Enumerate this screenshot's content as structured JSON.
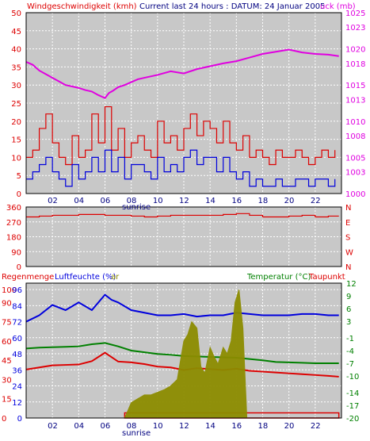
{
  "colors": {
    "red": "#dd0000",
    "blue": "#0000dd",
    "magenta": "#e000e0",
    "green": "#008000",
    "olive": "#8c8c00",
    "text_dark": "#000080",
    "grid": "#ffffff",
    "plot_bg": "#c8c8c8"
  },
  "header": {
    "left_label": "Windgeschwindigkeit (kmh)",
    "center_label": "Current last 24 hours : DATUM: 24 Januar 2005",
    "right_label": "uck (mb)"
  },
  "hours": [
    "02",
    "04",
    "06",
    "08",
    "10",
    "12",
    "14",
    "16",
    "18",
    "20",
    "22"
  ],
  "sunrise_label": "sunrise",
  "chart_data": [
    {
      "type": "line",
      "name": "wind-speed-and-pressure",
      "title": "Windgeschwindigkeit (kmh)",
      "ylabel_left": "Windgeschwindigkeit (kmh)",
      "ylabel_right": "uck (mb)",
      "x_range": [
        0,
        24
      ],
      "ylim_left": [
        0,
        50
      ],
      "ylim_right": [
        1000,
        1025
      ],
      "yticks_left": [
        0,
        5,
        10,
        15,
        20,
        25,
        30,
        35,
        40,
        45,
        50
      ],
      "yticks_right": [
        1000,
        1003,
        1005,
        1008,
        1010,
        1013,
        1015,
        1018,
        1020,
        1023,
        1025
      ],
      "series": [
        {
          "color": "#e000e0",
          "axis": "right",
          "x": [
            0,
            0.5,
            1,
            1.5,
            2,
            2.5,
            3,
            3.5,
            4,
            4.5,
            5,
            5.5,
            6,
            6.3,
            6.6,
            7,
            7.5,
            8,
            8.5,
            9,
            10,
            11,
            12,
            13,
            14,
            15,
            16,
            17,
            18,
            19,
            20,
            21,
            22,
            23,
            23.8
          ],
          "values": [
            1018.2,
            1017.8,
            1017.0,
            1016.5,
            1016.0,
            1015.5,
            1015.0,
            1014.8,
            1014.6,
            1014.3,
            1014.1,
            1013.6,
            1013.2,
            1013.9,
            1014.2,
            1014.7,
            1015.0,
            1015.4,
            1015.8,
            1016.0,
            1016.4,
            1016.9,
            1016.6,
            1017.2,
            1017.6,
            1018.0,
            1018.3,
            1018.8,
            1019.3,
            1019.6,
            1019.9,
            1019.5,
            1019.3,
            1019.2,
            1019.0
          ]
        },
        {
          "color": "#dd0000",
          "axis": "left",
          "name": "gusts",
          "x": [
            0,
            0.5,
            1,
            1.5,
            2,
            2.5,
            3,
            3.5,
            4,
            4.5,
            5,
            5.5,
            6,
            6.5,
            7,
            7.5,
            8,
            8.5,
            9,
            9.5,
            10,
            10.5,
            11,
            11.5,
            12,
            12.5,
            13,
            13.5,
            14,
            14.5,
            15,
            15.5,
            16,
            16.5,
            17,
            17.5,
            18,
            18.5,
            19,
            19.5,
            20,
            20.5,
            21,
            21.5,
            22,
            22.5,
            23,
            23.5
          ],
          "values": [
            10,
            12,
            18,
            22,
            14,
            10,
            8,
            16,
            10,
            12,
            22,
            14,
            24,
            12,
            18,
            10,
            14,
            16,
            12,
            10,
            20,
            14,
            16,
            12,
            18,
            22,
            16,
            20,
            18,
            14,
            20,
            14,
            12,
            16,
            10,
            12,
            10,
            8,
            12,
            10,
            10,
            12,
            10,
            8,
            10,
            12,
            10,
            12
          ]
        },
        {
          "color": "#0000dd",
          "axis": "left",
          "name": "mean",
          "x": [
            0,
            0.5,
            1,
            1.5,
            2,
            2.5,
            3,
            3.5,
            4,
            4.5,
            5,
            5.5,
            6,
            6.5,
            7,
            7.5,
            8,
            8.5,
            9,
            9.5,
            10,
            10.5,
            11,
            11.5,
            12,
            12.5,
            13,
            13.5,
            14,
            14.5,
            15,
            15.5,
            16,
            16.5,
            17,
            17.5,
            18,
            18.5,
            19,
            19.5,
            20,
            20.5,
            21,
            21.5,
            22,
            22.5,
            23,
            23.5
          ],
          "values": [
            4,
            6,
            8,
            10,
            6,
            4,
            2,
            8,
            4,
            6,
            10,
            6,
            12,
            6,
            10,
            4,
            8,
            8,
            6,
            4,
            10,
            6,
            8,
            6,
            10,
            12,
            8,
            10,
            10,
            6,
            10,
            6,
            4,
            6,
            2,
            4,
            2,
            2,
            4,
            2,
            2,
            4,
            4,
            2,
            4,
            4,
            2,
            4
          ]
        }
      ]
    },
    {
      "type": "line",
      "name": "wind-direction",
      "x_range": [
        0,
        24
      ],
      "ylim": [
        0,
        360
      ],
      "yticks_left": [
        0,
        90,
        180,
        270,
        360
      ],
      "yticks_right": [
        "N",
        "E",
        "S",
        "W",
        "N"
      ],
      "series": [
        {
          "color": "#dd0000",
          "x": [
            0,
            1,
            2,
            3,
            4,
            5,
            6,
            7,
            8,
            9,
            10,
            11,
            12,
            13,
            14,
            15,
            16,
            17,
            18,
            19,
            20,
            21,
            22,
            23,
            23.8
          ],
          "values": [
            300,
            305,
            310,
            310,
            315,
            315,
            310,
            310,
            305,
            300,
            305,
            310,
            310,
            310,
            310,
            315,
            320,
            310,
            300,
            300,
            305,
            310,
            300,
            305,
            305
          ]
        }
      ]
    },
    {
      "type": "line",
      "name": "humidity-rain-temperature",
      "header_left": "Regenmenge",
      "header_humidity": "Luftfeuchte (%)",
      "header_extra": "ar",
      "header_temp": "Temperatur (°C)",
      "header_dew": "Taupunkt",
      "x_range": [
        0,
        24
      ],
      "ylim_left": [
        0,
        105
      ],
      "ylim_right": [
        -20,
        12
      ],
      "yticks_left": [
        0,
        15,
        30,
        45,
        60,
        75,
        90,
        100
      ],
      "yticks_left_labels": [
        "0",
        "15",
        "30",
        "45",
        "60",
        "75",
        "90",
        "100"
      ],
      "yticks_left2": [
        0,
        12,
        24,
        36,
        48,
        60,
        72,
        84,
        96
      ],
      "yticks_right": [
        12,
        9,
        6,
        3,
        -1,
        -4,
        -7,
        -10,
        -14,
        -17,
        -20
      ],
      "series": [
        {
          "color": "#0000dd",
          "axis": "left",
          "x": [
            0,
            1,
            2,
            3,
            4,
            5,
            6,
            6.5,
            7,
            8,
            9,
            10,
            11,
            12,
            13,
            14,
            15,
            16,
            17,
            18,
            19,
            20,
            21,
            22,
            23,
            23.8
          ],
          "values": [
            75,
            80,
            88,
            84,
            90,
            84,
            96,
            92,
            90,
            84,
            82,
            80,
            80,
            81,
            79,
            80,
            80,
            82,
            81,
            80,
            80,
            80,
            81,
            81,
            80,
            80
          ]
        },
        {
          "color": "#008000",
          "axis": "right",
          "x": [
            0,
            1,
            2,
            3,
            4,
            5,
            6,
            7,
            8,
            9,
            10,
            11,
            12,
            13,
            14,
            15,
            16,
            17,
            18,
            19,
            20,
            21,
            22,
            23,
            23.8
          ],
          "values": [
            -3.5,
            -3.3,
            -3.2,
            -3.1,
            -3.0,
            -2.5,
            -2.2,
            -3.0,
            -4.0,
            -4.4,
            -4.8,
            -5.0,
            -5.3,
            -5.4,
            -5.5,
            -5.6,
            -5.7,
            -6.0,
            -6.3,
            -6.7,
            -6.8,
            -6.9,
            -7.0,
            -7.0,
            -7.0
          ]
        },
        {
          "color": "#dd0000",
          "axis": "right",
          "x": [
            0,
            1,
            2,
            3,
            4,
            5,
            6,
            7,
            8,
            9,
            10,
            11,
            12,
            13,
            14,
            15,
            16,
            17,
            18,
            19,
            20,
            21,
            22,
            23,
            23.8
          ],
          "values": [
            -8.5,
            -8.0,
            -7.5,
            -7.4,
            -7.3,
            -6.5,
            -4.5,
            -6.6,
            -6.8,
            -7.2,
            -7.8,
            -8.0,
            -8.6,
            -8.2,
            -8.4,
            -8.6,
            -8.3,
            -8.8,
            -9.0,
            -9.2,
            -9.4,
            -9.6,
            -9.8,
            -10.0,
            -10.2
          ]
        },
        {
          "color": "#8c8c00",
          "axis": "left",
          "kind": "area",
          "x": [
            7.5,
            8,
            8.5,
            9,
            9.5,
            10,
            10.5,
            11,
            11.5,
            12,
            12.3,
            12.6,
            13,
            13.3,
            13.6,
            14,
            14.3,
            14.6,
            15,
            15.3,
            15.6,
            15.9,
            16.2,
            16.5,
            16.8
          ],
          "values": [
            0,
            12,
            15,
            18,
            18,
            20,
            22,
            25,
            30,
            60,
            65,
            75,
            70,
            40,
            35,
            55,
            48,
            42,
            55,
            50,
            60,
            90,
            100,
            70,
            0
          ]
        }
      ]
    }
  ]
}
